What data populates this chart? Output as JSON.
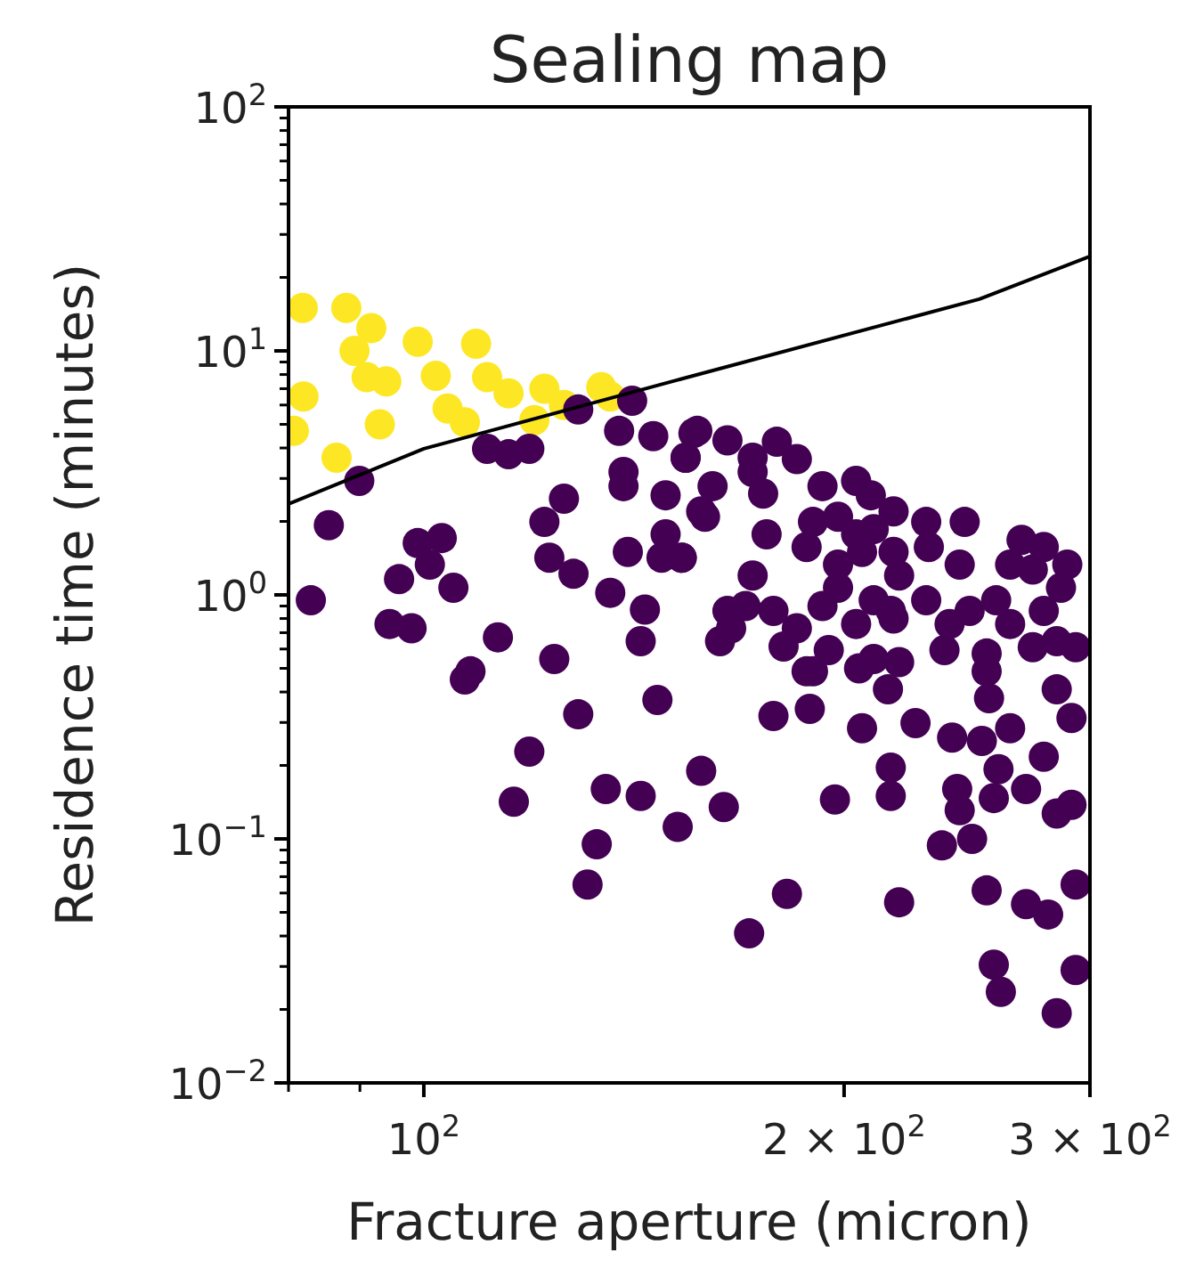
{
  "chart_data": {
    "type": "scatter",
    "title": "Sealing map",
    "xlabel": "Fracture aperture (micron)",
    "ylabel": "Residence time (minutes)",
    "log": "xy",
    "grid": false,
    "xlim": [
      80,
      300
    ],
    "ylim": [
      0.01,
      100
    ],
    "xticks": [
      {
        "value": 80,
        "label": null
      },
      {
        "value": 90,
        "label": null
      },
      {
        "value": 100,
        "label": "10$^{2}$"
      },
      {
        "value": 200,
        "label": "2 × 10$^{2}$"
      },
      {
        "value": 300,
        "label": "3 × 10$^{2}$"
      }
    ],
    "yticks": [
      {
        "value": 0.01,
        "label": "10$^{−2}$"
      },
      {
        "value": 0.02,
        "label": null
      },
      {
        "value": 0.03,
        "label": null
      },
      {
        "value": 0.04,
        "label": null
      },
      {
        "value": 0.05,
        "label": null
      },
      {
        "value": 0.06,
        "label": null
      },
      {
        "value": 0.07,
        "label": null
      },
      {
        "value": 0.08,
        "label": null
      },
      {
        "value": 0.09,
        "label": null
      },
      {
        "value": 0.1,
        "label": "10$^{−1}$"
      },
      {
        "value": 0.2,
        "label": null
      },
      {
        "value": 0.3,
        "label": null
      },
      {
        "value": 0.4,
        "label": null
      },
      {
        "value": 0.5,
        "label": null
      },
      {
        "value": 0.6,
        "label": null
      },
      {
        "value": 0.7,
        "label": null
      },
      {
        "value": 0.8,
        "label": null
      },
      {
        "value": 0.9,
        "label": null
      },
      {
        "value": 1,
        "label": "10$^{0}$"
      },
      {
        "value": 2,
        "label": null
      },
      {
        "value": 3,
        "label": null
      },
      {
        "value": 4,
        "label": null
      },
      {
        "value": 5,
        "label": null
      },
      {
        "value": 6,
        "label": null
      },
      {
        "value": 7,
        "label": null
      },
      {
        "value": 8,
        "label": null
      },
      {
        "value": 9,
        "label": null
      },
      {
        "value": 10,
        "label": "10$^{1}$"
      },
      {
        "value": 20,
        "label": null
      },
      {
        "value": 30,
        "label": null
      },
      {
        "value": 40,
        "label": null
      },
      {
        "value": 50,
        "label": null
      },
      {
        "value": 60,
        "label": null
      },
      {
        "value": 70,
        "label": null
      },
      {
        "value": 80,
        "label": null
      },
      {
        "value": 90,
        "label": null
      },
      {
        "value": 100,
        "label": "10$^{2}$"
      }
    ],
    "series": [
      {
        "marker": "circle",
        "color": "#fde725",
        "x": [
          81.9,
          88,
          91.7,
          89.2,
          99,
          109,
          91,
          94,
          102,
          111,
          115,
          122,
          134,
          136,
          82,
          80.7,
          93,
          104,
          107,
          120,
          126,
          86.6
        ],
        "values": [
          15,
          15,
          12.4,
          10,
          10.9,
          10.7,
          7.8,
          7.5,
          7.9,
          7.8,
          6.7,
          7,
          7.1,
          6.5,
          6.5,
          4.7,
          5,
          5.8,
          5.1,
          5.2,
          6,
          3.65
        ]
      },
      {
        "marker": "circle",
        "color": "#440154",
        "x": [
          141,
          129,
          111,
          115,
          119,
          138,
          146,
          156,
          154,
          139,
          139,
          126,
          122,
          149,
          158,
          89.9,
          85.5,
          99,
          103,
          101,
          96,
          105,
          123,
          128,
          140,
          149,
          148,
          153,
          136,
          144,
          83,
          94.5,
          98,
          113,
          143,
          124,
          108,
          107,
          147,
          129,
          119,
          116,
          135,
          143,
          152,
          158,
          133,
          131,
          163,
          181,
          195,
          188,
          205,
          219,
          236,
          253,
          254,
          215,
          178,
          189,
          206,
          225,
          239,
          251,
          263,
          278,
          258,
          270,
          256,
          284,
          291,
          284,
          291,
          164,
          197,
          216,
          216,
          241,
          242,
          235,
          247,
          182,
          171,
          219,
          253,
          270,
          280,
          293,
          256,
          259,
          284,
          293,
          157,
          165,
          154,
          172,
          179,
          185,
          161,
          172,
          175,
          159,
          176,
          153,
          193,
          204,
          209,
          217,
          229,
          244,
          190,
          188,
          198,
          204,
          210,
          206,
          198,
          217,
          230,
          219,
          242,
          268,
          278,
          289,
          263,
          273,
          172,
          170,
          178,
          165,
          166,
          185,
          193,
          198,
          210,
          216,
          204,
          229,
          238,
          246,
          257,
          263,
          278,
          286,
          293,
          284,
          273,
          217,
          210,
          190,
          253
        ],
        "values": [
          6.25,
          5.75,
          3.97,
          3.77,
          3.97,
          4.7,
          4.47,
          4.6,
          3.65,
          3.19,
          2.79,
          2.48,
          1.99,
          2.56,
          2.2,
          2.93,
          1.93,
          1.63,
          1.71,
          1.33,
          1.16,
          1.07,
          1.42,
          1.22,
          1.5,
          1.77,
          1.42,
          1.42,
          1.02,
          0.87,
          0.95,
          0.76,
          0.73,
          0.67,
          0.646,
          0.546,
          0.486,
          0.45,
          0.371,
          0.324,
          0.228,
          0.142,
          0.16,
          0.15,
          0.112,
          0.19,
          0.095,
          0.065,
          0.646,
          0.614,
          0.594,
          0.486,
          0.5,
          0.53,
          0.594,
          0.486,
          0.377,
          0.41,
          0.319,
          0.341,
          0.284,
          0.298,
          0.26,
          0.252,
          0.284,
          0.217,
          0.193,
          0.16,
          0.147,
          0.127,
          0.138,
          0.41,
          0.313,
          0.135,
          0.145,
          0.196,
          0.15,
          0.16,
          0.131,
          0.094,
          0.1,
          0.0595,
          0.041,
          0.055,
          0.0615,
          0.054,
          0.049,
          0.065,
          0.0305,
          0.0236,
          0.0193,
          0.029,
          4.7,
          4.3,
          3.65,
          3.65,
          4.24,
          3.6,
          2.79,
          3.19,
          2.6,
          2.09,
          1.77,
          1.42,
          2.79,
          2.93,
          2.56,
          2.2,
          1.99,
          1.99,
          1.99,
          1.57,
          2.09,
          1.77,
          1.86,
          1.5,
          1.33,
          1.5,
          1.57,
          1.2,
          1.33,
          1.68,
          1.57,
          1.33,
          1.33,
          1.27,
          1.2,
          0.9,
          0.86,
          0.86,
          0.73,
          0.73,
          0.9,
          1.07,
          0.95,
          0.86,
          0.76,
          0.95,
          0.76,
          0.86,
          0.95,
          0.76,
          0.86,
          1.07,
          0.61,
          0.646,
          0.61,
          0.8,
          0.546,
          0.486,
          0.575
        ]
      },
      {
        "type": "line",
        "color": "#000000",
        "x": [
          80,
          100,
          152,
          250,
          300
        ],
        "values": [
          2.36,
          3.97,
          7.6,
          16.3,
          24.4
        ]
      }
    ]
  }
}
